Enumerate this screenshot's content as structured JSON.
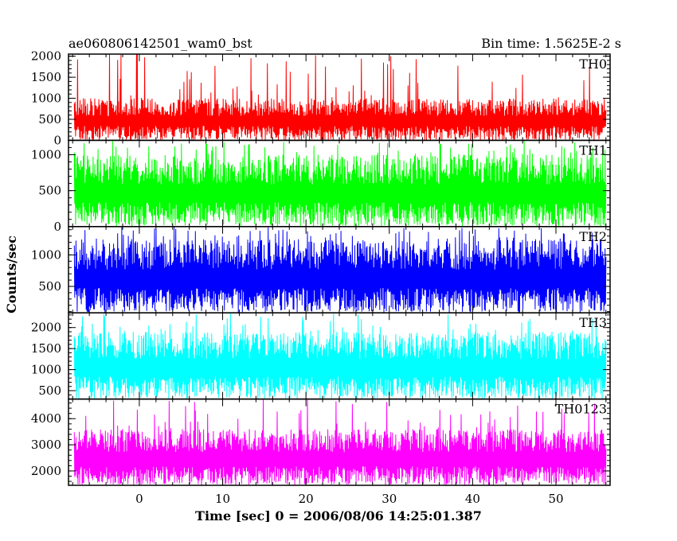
{
  "title_left": "ae060806142501_wam0_bst",
  "title_right": "Bin time: 1.5625E-2 s",
  "chart_data": {
    "type": "line",
    "title": "ae060806142501_wam0_bst",
    "subtitle": "Bin time: 1.5625E-2 s",
    "xlabel": "Time [sec] 0 = 2006/08/06 14:25:01.387",
    "ylabel": "Counts/sec",
    "xlim": [
      -8.5,
      56.5
    ],
    "data_xlim": [
      -7.8,
      56.0
    ],
    "xticks": [
      0,
      10,
      20,
      30,
      40,
      50
    ],
    "x_minor_step": 2,
    "grid": false,
    "panels": [
      {
        "name": "TH0",
        "color": "#ff0000",
        "ylim": [
          0,
          2050
        ],
        "yticks": [
          0,
          500,
          1000,
          1500,
          2000
        ],
        "y_minor_step": 100,
        "typical_range": [
          60,
          1000
        ],
        "max_spike": 2100,
        "spike_at": -0.3
      },
      {
        "name": "TH1",
        "color": "#00ff00",
        "ylim": [
          0,
          1200
        ],
        "yticks": [
          0,
          500,
          1000
        ],
        "y_minor_step": 100,
        "typical_range": [
          80,
          1000
        ],
        "max_spike": 1200
      },
      {
        "name": "TH2",
        "color": "#0000ff",
        "ylim": [
          80,
          1450
        ],
        "yticks": [
          500,
          1000
        ],
        "y_minor_step": 100,
        "typical_range": [
          180,
          1250
        ],
        "max_spike": 1450
      },
      {
        "name": "TH3",
        "color": "#00ffff",
        "ylim": [
          300,
          2350
        ],
        "yticks": [
          500,
          1000,
          1500,
          2000
        ],
        "y_minor_step": 100,
        "typical_range": [
          450,
          1900
        ],
        "max_spike": 2350
      },
      {
        "name": "TH0123",
        "color": "#ff00ff",
        "ylim": [
          1450,
          4750
        ],
        "yticks": [
          2000,
          3000,
          4000
        ],
        "y_minor_step": 200,
        "typical_range": [
          1650,
          3600
        ],
        "max_spike": 4750
      }
    ]
  }
}
